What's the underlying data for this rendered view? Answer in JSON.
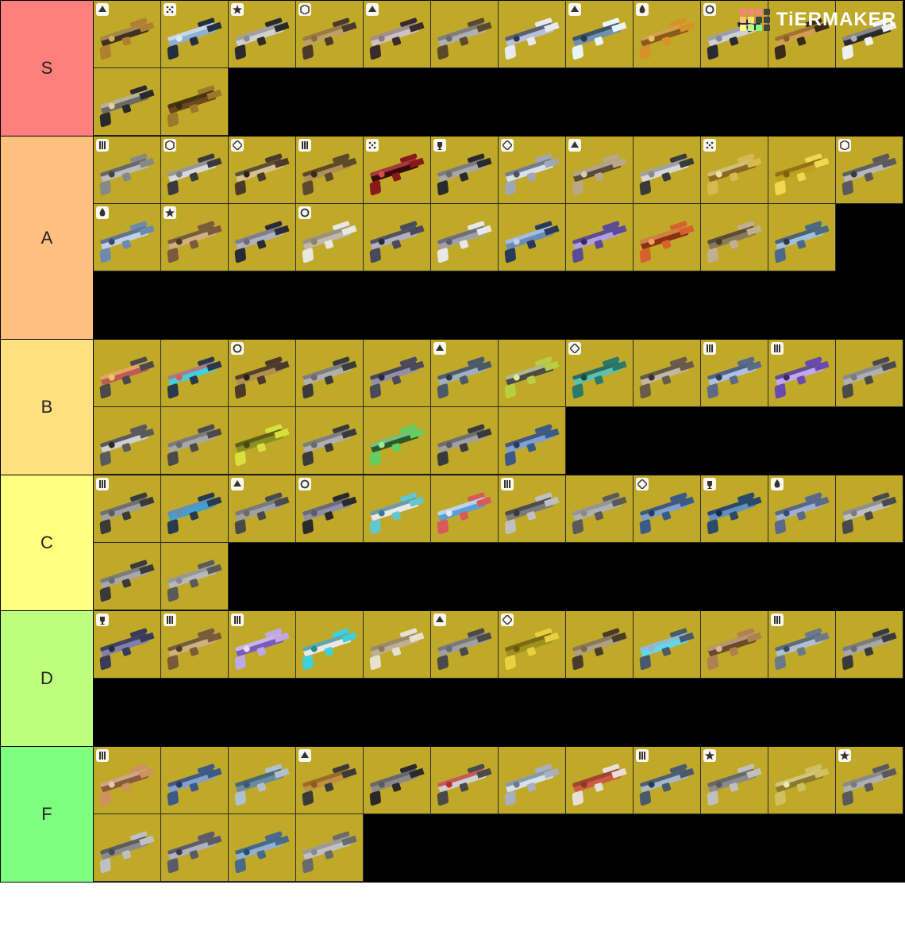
{
  "watermark": {
    "text": "TiERMAKER",
    "grid_colors": [
      "#ff7f7f",
      "#ff7f7f",
      "#ff7f7f",
      "#444444",
      "#ffbf7f",
      "#ffdf80",
      "#444444",
      "#444444",
      "#ffff7f",
      "#bfff7f",
      "#7fff7f",
      "#444444"
    ]
  },
  "item_background": "#c0a828",
  "row_background": "#000000",
  "cell_size": 85,
  "label_width": 117,
  "tiers": [
    {
      "label": "S",
      "color": "#ff7f7f",
      "rows_tall": 2,
      "items": [
        {
          "badge": "arrow-up",
          "palette": [
            "#b08030",
            "#403020",
            "#cfae60"
          ]
        },
        {
          "badge": "dots",
          "palette": [
            "#203040",
            "#90b0d0",
            "#e0e8f0"
          ]
        },
        {
          "badge": "star",
          "palette": [
            "#2a2a2a",
            "#d0d0d0",
            "#8c8c8c"
          ]
        },
        {
          "badge": "hex",
          "palette": [
            "#4a3a2a",
            "#c0a060",
            "#8a6a3a"
          ]
        },
        {
          "badge": "arrow-up",
          "palette": [
            "#3a2a2a",
            "#d0c0c0",
            "#8a7a7a"
          ]
        },
        {
          "badge": null,
          "palette": [
            "#5a4a2a",
            "#b0b0b0",
            "#6a6a6a"
          ]
        },
        {
          "badge": null,
          "palette": [
            "#e8e8f0",
            "#b8c0d8",
            "#303848"
          ]
        },
        {
          "badge": "arrow-up",
          "palette": [
            "#e8f4f8",
            "#7090b0",
            "#2a3a48"
          ]
        },
        {
          "badge": "flame",
          "palette": [
            "#d8902a",
            "#8a5a1a",
            "#f0c060"
          ]
        },
        {
          "badge": "circle",
          "palette": [
            "#2a2a36",
            "#d0d0d8",
            "#8a8a96"
          ]
        },
        {
          "badge": null,
          "palette": [
            "#3a2a1a",
            "#d0a050",
            "#8a6020"
          ]
        },
        {
          "badge": null,
          "palette": [
            "#f0f0f0",
            "#2a2a2a",
            "#b0b0b0"
          ]
        },
        {
          "badge": null,
          "palette": [
            "#2a2a2a",
            "#6a6a6a",
            "#e0d0a0"
          ]
        },
        {
          "badge": null,
          "palette": [
            "#9a7a2a",
            "#6a4a1a",
            "#3a2a10"
          ]
        }
      ]
    },
    {
      "label": "A",
      "color": "#ffbf7f",
      "rows_tall": 3,
      "items": [
        {
          "badge": "bars",
          "palette": [
            "#888888",
            "#bbbbbb",
            "#444444"
          ]
        },
        {
          "badge": "hex",
          "palette": [
            "#3a3a3a",
            "#d8d8d8",
            "#7a7a7a"
          ]
        },
        {
          "badge": "diamond",
          "palette": [
            "#4a3a2a",
            "#d8c090",
            "#2a2016"
          ]
        },
        {
          "badge": "bars",
          "palette": [
            "#5a4a2a",
            "#b09050",
            "#3a2a1a"
          ]
        },
        {
          "badge": "dots",
          "palette": [
            "#8a1a1a",
            "#3a0a0a",
            "#d05050"
          ]
        },
        {
          "badge": "trophy",
          "palette": [
            "#2a2a2a",
            "#a8a8a8",
            "#6a6a6a"
          ]
        },
        {
          "badge": "diamond",
          "palette": [
            "#a0a8b8",
            "#d8e0e8",
            "#4a5268"
          ]
        },
        {
          "badge": "arrow-up",
          "palette": [
            "#b8a888",
            "#5a4a3a",
            "#d8cab0"
          ]
        },
        {
          "badge": null,
          "palette": [
            "#3a3a3a",
            "#d8d8d8",
            "#8a8a8a"
          ]
        },
        {
          "badge": "dots",
          "palette": [
            "#d8b850",
            "#8a6a20",
            "#f0e0a0"
          ]
        },
        {
          "badge": null,
          "palette": [
            "#f0d850",
            "#c0a020",
            "#7a6010"
          ]
        },
        {
          "badge": "hex",
          "palette": [
            "#5a5a5a",
            "#b8b8b8",
            "#3a3a3a"
          ]
        },
        {
          "badge": "flame",
          "palette": [
            "#6a8ab0",
            "#c0d0e8",
            "#3a4a6a"
          ]
        },
        {
          "badge": "star",
          "palette": [
            "#7a5a3a",
            "#d0b080",
            "#4a3a20"
          ]
        },
        {
          "badge": null,
          "palette": [
            "#2a2a36",
            "#b0b0c0",
            "#6a6a7a"
          ]
        },
        {
          "badge": "circle",
          "palette": [
            "#e8e8e0",
            "#c0b8a8",
            "#8a8070"
          ]
        },
        {
          "badge": null,
          "palette": [
            "#4a4a5a",
            "#b0b0c0",
            "#2a2a36"
          ]
        },
        {
          "badge": null,
          "palette": [
            "#e8e8e8",
            "#a0a0a8",
            "#5a5a6a"
          ]
        },
        {
          "badge": null,
          "palette": [
            "#2a3a5a",
            "#6a8ab8",
            "#c0d0e8"
          ]
        },
        {
          "badge": null,
          "palette": [
            "#5a4a9a",
            "#b0a0e0",
            "#3a2a6a"
          ]
        },
        {
          "badge": null,
          "palette": [
            "#d8602a",
            "#8a3010",
            "#f0a060"
          ]
        },
        {
          "badge": null,
          "palette": [
            "#c0b090",
            "#8a7a5a",
            "#4a3a2a"
          ]
        },
        {
          "badge": null,
          "palette": [
            "#4a6a8a",
            "#a0c0d8",
            "#2a3a4a"
          ]
        }
      ]
    },
    {
      "label": "B",
      "color": "#ffdf7f",
      "rows_tall": 2,
      "items": [
        {
          "badge": null,
          "palette": [
            "#4a4a4a",
            "#c05a5a",
            "#f0c860"
          ]
        },
        {
          "badge": null,
          "palette": [
            "#2a3a4a",
            "#40d0e0",
            "#d85a5a"
          ]
        },
        {
          "badge": "circle",
          "palette": [
            "#4a3a2a",
            "#b09050",
            "#2a2016"
          ]
        },
        {
          "badge": null,
          "palette": [
            "#3a3a3a",
            "#b0b0b0",
            "#6a6a6a"
          ]
        },
        {
          "badge": null,
          "palette": [
            "#4a4a5a",
            "#9090a8",
            "#2a2a36"
          ]
        },
        {
          "badge": "arrow-up",
          "palette": [
            "#4a5a6a",
            "#a0b0c0",
            "#2a3a4a"
          ]
        },
        {
          "badge": null,
          "palette": [
            "#b8d040",
            "#4a4a4a",
            "#e0e8a0"
          ]
        },
        {
          "badge": "diamond",
          "palette": [
            "#2a7a6a",
            "#60c0b0",
            "#1a4a3a"
          ]
        },
        {
          "badge": null,
          "palette": [
            "#6a5a4a",
            "#c0b8a0",
            "#3a3028"
          ]
        },
        {
          "badge": "bars",
          "palette": [
            "#5a6a8a",
            "#b0c0e0",
            "#2a3a5a"
          ]
        },
        {
          "badge": "bars",
          "palette": [
            "#6a4ab0",
            "#c0a8f0",
            "#3a2a6a"
          ]
        },
        {
          "badge": null,
          "palette": [
            "#4a4a4a",
            "#b0b0b0",
            "#7a7a7a"
          ]
        },
        {
          "badge": null,
          "palette": [
            "#5a5a5a",
            "#d0d0d0",
            "#2a2a2a"
          ]
        },
        {
          "badge": null,
          "palette": [
            "#4a4a4a",
            "#a8a8a8",
            "#6a6a6a"
          ]
        },
        {
          "badge": null,
          "palette": [
            "#d8e040",
            "#8a9020",
            "#4a4a10"
          ]
        },
        {
          "badge": null,
          "palette": [
            "#3a3a3a",
            "#b0b0b0",
            "#6a6a6a"
          ]
        },
        {
          "badge": null,
          "palette": [
            "#60d060",
            "#2a5a2a",
            "#a0e8a0"
          ]
        },
        {
          "badge": null,
          "palette": [
            "#3a3a3a",
            "#a0a0a0",
            "#5a5a5a"
          ]
        },
        {
          "badge": null,
          "palette": [
            "#3a5a8a",
            "#80a0d0",
            "#2a3a5a"
          ]
        }
      ]
    },
    {
      "label": "C",
      "color": "#feff7f",
      "rows_tall": 2,
      "items": [
        {
          "badge": "bars",
          "palette": [
            "#3a3a3a",
            "#a0a0a0",
            "#5a5a5a"
          ]
        },
        {
          "badge": null,
          "palette": [
            "#2a3a4a",
            "#40a0d0",
            "#6a8ab0"
          ]
        },
        {
          "badge": "arrow-up",
          "palette": [
            "#4a4a4a",
            "#a0a0a0",
            "#6a6a6a"
          ]
        },
        {
          "badge": "circle",
          "palette": [
            "#2a2a2a",
            "#9090a0",
            "#5a5a6a"
          ]
        },
        {
          "badge": null,
          "palette": [
            "#60c8d0",
            "#e8e8e8",
            "#3a7a8a"
          ]
        },
        {
          "badge": null,
          "palette": [
            "#d85a5a",
            "#5aa0d8",
            "#e8e8e8"
          ]
        },
        {
          "badge": "bars",
          "palette": [
            "#c0c0c0",
            "#7a7a7a",
            "#3a3a3a"
          ]
        },
        {
          "badge": null,
          "palette": [
            "#5a5a5a",
            "#b0b0b0",
            "#8a8a8a"
          ]
        },
        {
          "badge": "diamond",
          "palette": [
            "#3a5a8a",
            "#80a0c8",
            "#2a3a5a"
          ]
        },
        {
          "badge": "trophy",
          "palette": [
            "#2a4a6a",
            "#6090c0",
            "#1a2a4a"
          ]
        },
        {
          "badge": "flame",
          "palette": [
            "#5a6a8a",
            "#a0b0d0",
            "#3a4a6a"
          ]
        },
        {
          "badge": null,
          "palette": [
            "#4a4a4a",
            "#c0c0c0",
            "#7a7a7a"
          ]
        },
        {
          "badge": null,
          "palette": [
            "#3a3a3a",
            "#a8a8a8",
            "#6a6a6a"
          ]
        },
        {
          "badge": null,
          "palette": [
            "#5a5a5a",
            "#b8b8b8",
            "#8a8a8a"
          ]
        }
      ]
    },
    {
      "label": "D",
      "color": "#bfff7f",
      "rows_tall": 2,
      "items": [
        {
          "badge": "trophy",
          "palette": [
            "#3a3a5a",
            "#8080b0",
            "#2a2a3a"
          ]
        },
        {
          "badge": "bars",
          "palette": [
            "#7a5a3a",
            "#d0b080",
            "#4a3a20"
          ]
        },
        {
          "badge": "bars",
          "palette": [
            "#c0a8e0",
            "#7a5ac0",
            "#e8dcf4"
          ]
        },
        {
          "badge": null,
          "palette": [
            "#40d0d8",
            "#e8e8e8",
            "#2a8a90"
          ]
        },
        {
          "badge": null,
          "palette": [
            "#e8e0d0",
            "#c0b090",
            "#8a7a5a"
          ]
        },
        {
          "badge": "arrow-up",
          "palette": [
            "#4a4a4a",
            "#a0a0a0",
            "#6a6a6a"
          ]
        },
        {
          "badge": "diamond",
          "palette": [
            "#e8d040",
            "#a09020",
            "#6a5a10"
          ]
        },
        {
          "badge": null,
          "palette": [
            "#4a3a2a",
            "#b0a080",
            "#7a6a4a"
          ]
        },
        {
          "badge": null,
          "palette": [
            "#4a5a6a",
            "#60d8f0",
            "#a0b0c0"
          ]
        },
        {
          "badge": null,
          "palette": [
            "#b08050",
            "#6a4a2a",
            "#d8b890"
          ]
        },
        {
          "badge": "bars",
          "palette": [
            "#6a7a8a",
            "#b0c0d0",
            "#3a4a5a"
          ]
        },
        {
          "badge": null,
          "palette": [
            "#3a3a3a",
            "#a8a8a8",
            "#6a6a6a"
          ]
        }
      ]
    },
    {
      "label": "F",
      "color": "#7fff7f",
      "rows_tall": 2,
      "items": [
        {
          "badge": "bars",
          "palette": [
            "#d09060",
            "#8a5a3a",
            "#e8c8a8"
          ]
        },
        {
          "badge": null,
          "palette": [
            "#3a5a8a",
            "#80a0d0",
            "#2a3a5a"
          ]
        },
        {
          "badge": null,
          "palette": [
            "#b0c0d0",
            "#6a8aa0",
            "#3a5a6a"
          ]
        },
        {
          "badge": "arrow-up",
          "palette": [
            "#3a3a3a",
            "#c09040",
            "#8a5a20"
          ]
        },
        {
          "badge": null,
          "palette": [
            "#2a2a2a",
            "#8a8a8a",
            "#5a5a5a"
          ]
        },
        {
          "badge": null,
          "palette": [
            "#4a4a4a",
            "#d0d0d0",
            "#c02a2a"
          ]
        },
        {
          "badge": null,
          "palette": [
            "#a8b0c0",
            "#d8e0e8",
            "#6a7a8a"
          ]
        },
        {
          "badge": null,
          "palette": [
            "#e8e0d8",
            "#d05a40",
            "#8a3a2a"
          ]
        },
        {
          "badge": "bars",
          "palette": [
            "#4a5a6a",
            "#a8b8c8",
            "#2a3a4a"
          ]
        },
        {
          "badge": "star",
          "palette": [
            "#c0c0c0",
            "#8a8a8a",
            "#5a5a5a"
          ]
        },
        {
          "badge": null,
          "palette": [
            "#d0c060",
            "#8a7a30",
            "#f0e8a0"
          ]
        },
        {
          "badge": "star",
          "palette": [
            "#5a5a5a",
            "#b0b0b0",
            "#7a7a7a"
          ]
        },
        {
          "badge": null,
          "palette": [
            "#c0c0c0",
            "#8a8a8a",
            "#4a4a4a"
          ]
        },
        {
          "badge": null,
          "palette": [
            "#5a5a6a",
            "#b0b0c0",
            "#3a3a4a"
          ]
        },
        {
          "badge": null,
          "palette": [
            "#4a6a8a",
            "#90b0d0",
            "#2a4a6a"
          ]
        },
        {
          "badge": null,
          "palette": [
            "#6a6a6a",
            "#c0c0c0",
            "#8a8a8a"
          ]
        }
      ]
    }
  ]
}
